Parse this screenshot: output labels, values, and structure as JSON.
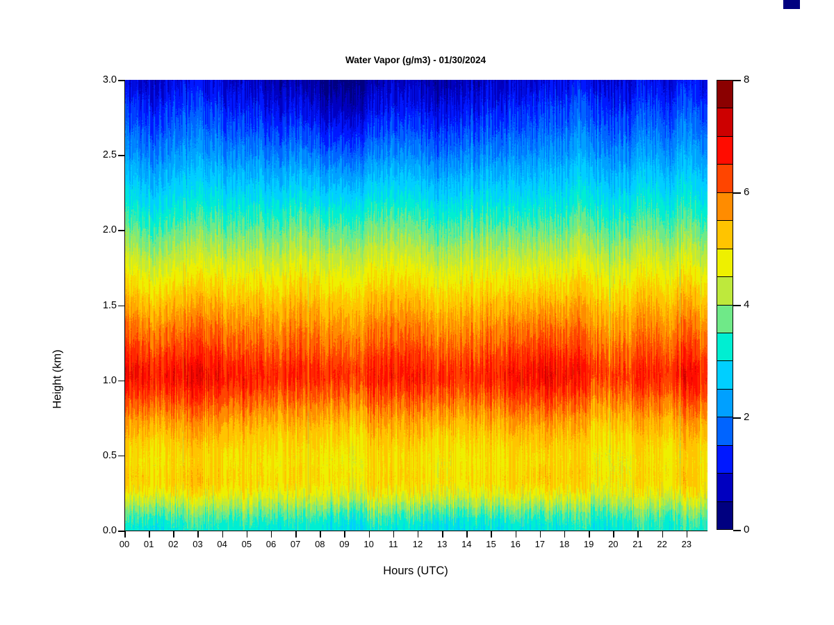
{
  "chart_data": {
    "type": "heatmap",
    "title": "Water Vapor (g/m3) - 01/30/2024",
    "xlabel": "Hours (UTC)",
    "ylabel": "Height (km)",
    "x_tick_labels": [
      "00",
      "01",
      "02",
      "03",
      "04",
      "05",
      "06",
      "07",
      "08",
      "09",
      "10",
      "11",
      "12",
      "13",
      "14",
      "15",
      "16",
      "17",
      "18",
      "19",
      "20",
      "21",
      "22",
      "23"
    ],
    "y_tick_labels": [
      "0.0",
      "0.5",
      "1.0",
      "1.5",
      "2.0",
      "2.5",
      "3.0"
    ],
    "x_range_hours": [
      0,
      23.83
    ],
    "y_range_km": [
      0,
      3
    ],
    "grid": false,
    "colorbar": {
      "tick_labels_top_to_bottom": [
        "8",
        "6",
        "4",
        "2",
        "0"
      ],
      "value_min": 0,
      "value_max": 8,
      "n_segments": 16
    },
    "palette_low_to_high": [
      "#000080",
      "#0000C0",
      "#0018FF",
      "#0064FF",
      "#00A0FF",
      "#00CFFF",
      "#00EED2",
      "#6FE988",
      "#BEE93C",
      "#EEF000",
      "#FFC400",
      "#FF8C00",
      "#FF4500",
      "#FF0C00",
      "#CD0000",
      "#8B0000"
    ],
    "mean_profile_height_km_to_value": [
      [
        0.0,
        3.2
      ],
      [
        0.06,
        3.35
      ],
      [
        0.13,
        3.8
      ],
      [
        0.2,
        4.35
      ],
      [
        0.28,
        4.85
      ],
      [
        0.36,
        4.95
      ],
      [
        0.45,
        4.8
      ],
      [
        0.55,
        4.95
      ],
      [
        0.65,
        5.15
      ],
      [
        0.75,
        5.45
      ],
      [
        0.85,
        5.85
      ],
      [
        0.95,
        6.25
      ],
      [
        1.03,
        6.5
      ],
      [
        1.12,
        6.3
      ],
      [
        1.22,
        6.0
      ],
      [
        1.35,
        5.7
      ],
      [
        1.5,
        5.3
      ],
      [
        1.62,
        4.95
      ],
      [
        1.75,
        4.55
      ],
      [
        1.88,
        4.1
      ],
      [
        2.0,
        3.7
      ],
      [
        2.12,
        3.3
      ],
      [
        2.25,
        2.85
      ],
      [
        2.38,
        2.45
      ],
      [
        2.52,
        2.0
      ],
      [
        2.65,
        1.65
      ],
      [
        2.78,
        1.3
      ],
      [
        2.9,
        1.0
      ],
      [
        3.0,
        0.75
      ]
    ],
    "hourly_anomaly_low_level": [
      0.35,
      0.4,
      0.35,
      0.32,
      0.28,
      0.12,
      0.08,
      0.02,
      0.05,
      0.05,
      0.0,
      0.05,
      0.15,
      0.15,
      0.05,
      0.12,
      0.3,
      0.45,
      0.3,
      -0.05,
      0.0,
      -0.05,
      0.05,
      0.2
    ],
    "hourly_anomaly_top_level": [
      0.15,
      0.2,
      0.25,
      0.2,
      0.1,
      0.0,
      -0.1,
      -0.25,
      -0.4,
      -0.45,
      -0.35,
      -0.2,
      -0.15,
      -0.1,
      -0.05,
      0.0,
      0.1,
      0.2,
      0.25,
      0.2,
      0.15,
      0.15,
      0.2,
      0.25
    ],
    "texture": {
      "seed": 42,
      "fine_amp": 0.28,
      "coarse_amp": 0.2,
      "pixel_jitter": 0.16,
      "thin_line_probability": 0.011
    }
  }
}
